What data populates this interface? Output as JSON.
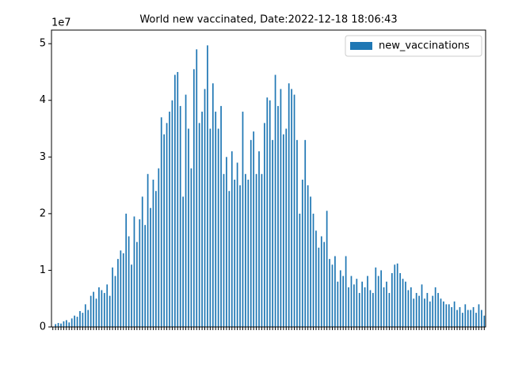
{
  "chart_data": {
    "type": "bar",
    "title": "World new vaccinated, Date:2022-12-18 18:06:43",
    "y_offset_label": "1e7",
    "series": [
      {
        "name": "new_vaccinations",
        "color": "#1f77b4",
        "values": [
          0,
          0.05,
          0.07,
          0.06,
          0.1,
          0.12,
          0.08,
          0.15,
          0.2,
          0.18,
          0.28,
          0.25,
          0.4,
          0.3,
          0.55,
          0.62,
          0.5,
          0.7,
          0.65,
          0.6,
          0.75,
          0.55,
          1.05,
          0.9,
          1.2,
          1.35,
          1.3,
          2.0,
          1.6,
          1.1,
          1.95,
          1.5,
          1.9,
          2.3,
          1.8,
          2.7,
          2.1,
          2.6,
          2.4,
          2.8,
          3.7,
          3.4,
          3.6,
          3.8,
          4.0,
          4.45,
          4.5,
          3.9,
          2.3,
          4.1,
          3.5,
          2.8,
          4.55,
          4.9,
          3.6,
          3.8,
          4.2,
          4.97,
          3.5,
          4.3,
          3.8,
          3.5,
          3.9,
          2.7,
          3.0,
          2.4,
          3.1,
          2.6,
          2.9,
          2.5,
          3.8,
          2.7,
          2.6,
          3.3,
          3.45,
          2.7,
          3.1,
          2.7,
          3.6,
          4.05,
          4.0,
          3.3,
          4.45,
          3.9,
          4.2,
          3.4,
          3.5,
          4.3,
          4.2,
          4.1,
          3.3,
          2.0,
          2.6,
          3.3,
          2.5,
          2.3,
          2.0,
          1.7,
          1.4,
          1.6,
          1.5,
          2.05,
          1.2,
          1.1,
          1.25,
          0.8,
          1.0,
          0.9,
          1.25,
          0.7,
          0.9,
          0.75,
          0.85,
          0.6,
          0.8,
          0.7,
          0.9,
          0.65,
          0.6,
          1.05,
          0.9,
          1.0,
          0.7,
          0.8,
          0.6,
          0.95,
          1.1,
          1.12,
          0.95,
          0.85,
          0.8,
          0.65,
          0.7,
          0.5,
          0.6,
          0.55,
          0.75,
          0.5,
          0.6,
          0.45,
          0.55,
          0.7,
          0.6,
          0.5,
          0.45,
          0.4,
          0.4,
          0.35,
          0.45,
          0.3,
          0.35,
          0.25,
          0.4,
          0.3,
          0.3,
          0.35,
          0.25,
          0.4,
          0.3,
          0.2
        ]
      }
    ],
    "categories": [
      null,
      null,
      null,
      null,
      null,
      null,
      null,
      null,
      null,
      null,
      null,
      null,
      null,
      null,
      null,
      null,
      null,
      null,
      null,
      null,
      null,
      null,
      null,
      null,
      null,
      null,
      null,
      null,
      null,
      null,
      null,
      null,
      null,
      null,
      null,
      null,
      null,
      null,
      null,
      null,
      null,
      null,
      null,
      null,
      null,
      null,
      null,
      null,
      null,
      null,
      null,
      null,
      null,
      null,
      null,
      null,
      null,
      null,
      null,
      null,
      null,
      null,
      null,
      null,
      null,
      null,
      null,
      null,
      null,
      null,
      null,
      null,
      null,
      null,
      null,
      null,
      null,
      null,
      null,
      null,
      null,
      null,
      null,
      null,
      null,
      null,
      null,
      null,
      null,
      null,
      null,
      null,
      null,
      null,
      null,
      null,
      null,
      null,
      null,
      null,
      null,
      null,
      null,
      null,
      null,
      null,
      null,
      null,
      null,
      null,
      null,
      null,
      null,
      null,
      null,
      null,
      null,
      null,
      null,
      null,
      null,
      null,
      null,
      null,
      null,
      null,
      null,
      null,
      null,
      null,
      null,
      null,
      null,
      null,
      null,
      null,
      null,
      null,
      null,
      null,
      null,
      null,
      null,
      null,
      null,
      null,
      null,
      null,
      null,
      null,
      null,
      null,
      null,
      null,
      null,
      null,
      null,
      null,
      null,
      null
    ],
    "ylim": [
      0,
      5.24
    ],
    "yticks": [
      0,
      1,
      2,
      3,
      4,
      5
    ],
    "legend": "upper right"
  }
}
